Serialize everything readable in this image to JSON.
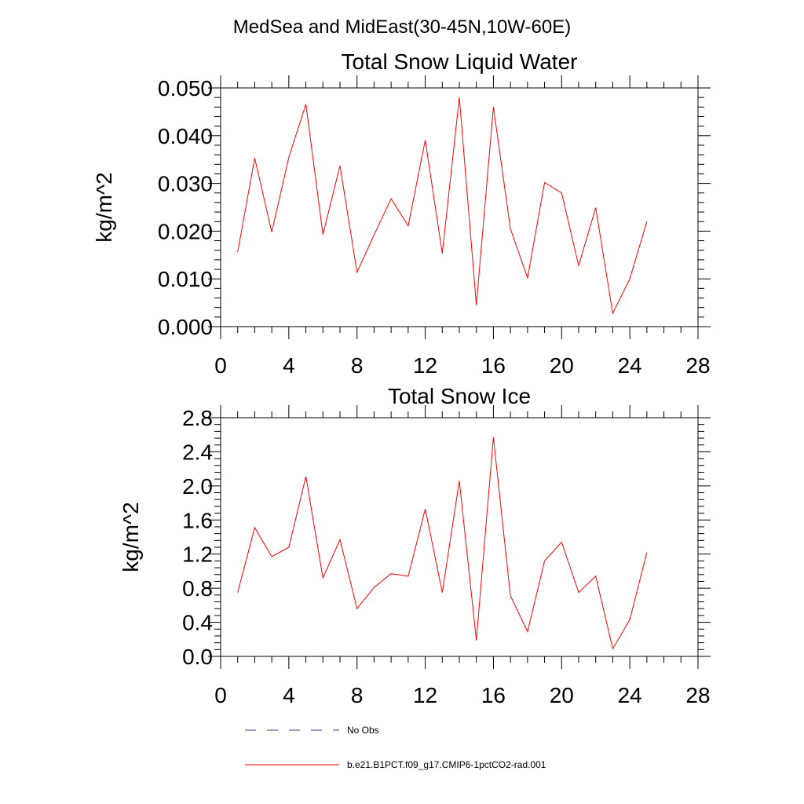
{
  "figure": {
    "suptitle": "MedSea and MidEast(30-45N,10W-60E)"
  },
  "chart_data": [
    {
      "type": "line",
      "title": "Total Snow Liquid Water",
      "xlabel": "",
      "ylabel": "kg/m^2",
      "xlim": [
        0,
        28
      ],
      "ylim": [
        0,
        0.05
      ],
      "xticks": [
        0,
        4,
        8,
        12,
        16,
        20,
        24,
        28
      ],
      "xtick_labels": [
        "0",
        "4",
        "8",
        "12",
        "16",
        "20",
        "24",
        "28"
      ],
      "yticks": [
        0,
        0.01,
        0.02,
        0.03,
        0.04,
        0.05
      ],
      "ytick_labels": [
        "0.000",
        "0.010",
        "0.020",
        "0.030",
        "0.040",
        "0.050"
      ],
      "grid": false,
      "series": [
        {
          "name": "b.e21.B1PCT.f09_g17.CMIP6-1pctCO2-rad.001",
          "color": "#ff0000",
          "x": [
            1,
            2,
            3,
            4,
            5,
            6,
            7,
            8,
            9,
            10,
            11,
            12,
            13,
            14,
            15,
            16,
            17,
            18,
            19,
            20,
            21,
            22,
            23,
            24,
            25
          ],
          "y": [
            0.0156,
            0.0353,
            0.0198,
            0.0355,
            0.0466,
            0.0193,
            0.0337,
            0.0114,
            0.0192,
            0.0268,
            0.0211,
            0.0391,
            0.0153,
            0.048,
            0.0045,
            0.046,
            0.0205,
            0.0102,
            0.0302,
            0.028,
            0.0128,
            0.0249,
            0.0028,
            0.01,
            0.022
          ]
        }
      ]
    },
    {
      "type": "line",
      "title": "Total Snow Ice",
      "xlabel": "",
      "ylabel": "kg/m^2",
      "xlim": [
        0,
        28
      ],
      "ylim": [
        0,
        2.8
      ],
      "xticks": [
        0,
        4,
        8,
        12,
        16,
        20,
        24,
        28
      ],
      "xtick_labels": [
        "0",
        "4",
        "8",
        "12",
        "16",
        "20",
        "24",
        "28"
      ],
      "yticks": [
        0,
        0.4,
        0.8,
        1.2,
        1.6,
        2.0,
        2.4,
        2.8
      ],
      "ytick_labels": [
        "0.0",
        "0.4",
        "0.8",
        "1.2",
        "1.6",
        "2.0",
        "2.4",
        "2.8"
      ],
      "grid": false,
      "series": [
        {
          "name": "b.e21.B1PCT.f09_g17.CMIP6-1pctCO2-rad.001",
          "color": "#ff0000",
          "x": [
            1,
            2,
            3,
            4,
            5,
            6,
            7,
            8,
            9,
            10,
            11,
            12,
            13,
            14,
            15,
            16,
            17,
            18,
            19,
            20,
            21,
            22,
            23,
            24,
            25
          ],
          "y": [
            0.75,
            1.51,
            1.17,
            1.28,
            2.11,
            0.92,
            1.37,
            0.56,
            0.81,
            0.97,
            0.94,
            1.73,
            0.75,
            2.06,
            0.19,
            2.57,
            0.71,
            0.29,
            1.12,
            1.34,
            0.75,
            0.94,
            0.09,
            0.43,
            1.22
          ]
        }
      ]
    }
  ],
  "legend": {
    "placement": "bottom-left",
    "entries": [
      {
        "label": "No Obs",
        "color": "#3b3b8f",
        "style": "dashed"
      },
      {
        "label": "b.e21.B1PCT.f09_g17.CMIP6-1pctCO2-rad.001",
        "color": "#ff0000",
        "style": "solid"
      }
    ]
  }
}
